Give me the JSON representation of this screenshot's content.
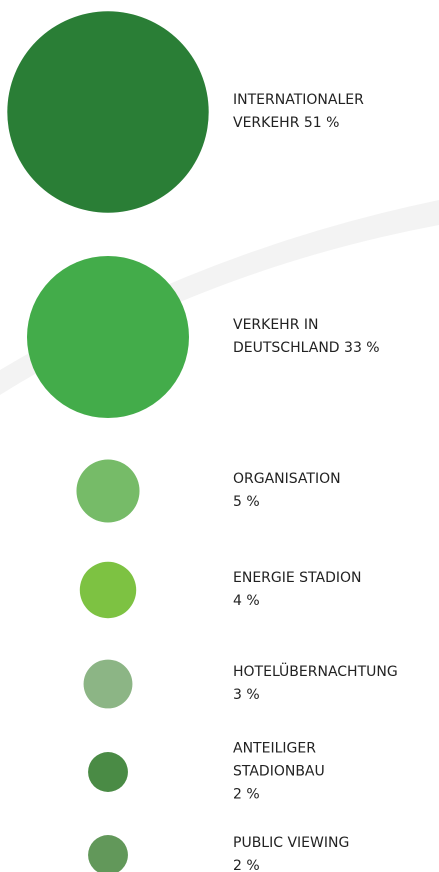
{
  "chart_data": {
    "type": "bubble",
    "categories": [
      "INTERNATIONALER VERKEHR",
      "VERKEHR IN DEUTSCHLAND",
      "ORGANISATION",
      "ENERGIE STADION",
      "HOTELÜBERNACHTUNG",
      "ANTEILIGER STADIONBAU",
      "PUBLIC VIEWING"
    ],
    "values": [
      51,
      33,
      5,
      4,
      3,
      2,
      2
    ],
    "value_labels": [
      "51 %",
      "33 %",
      "5 %",
      "4 %",
      "3 %",
      "2 %",
      "2 %"
    ],
    "colors": [
      "#2a7e36",
      "#43ac4a",
      "#76bb68",
      "#7dc242",
      "#8cb585",
      "#4a8b45",
      "#62985a"
    ]
  }
}
